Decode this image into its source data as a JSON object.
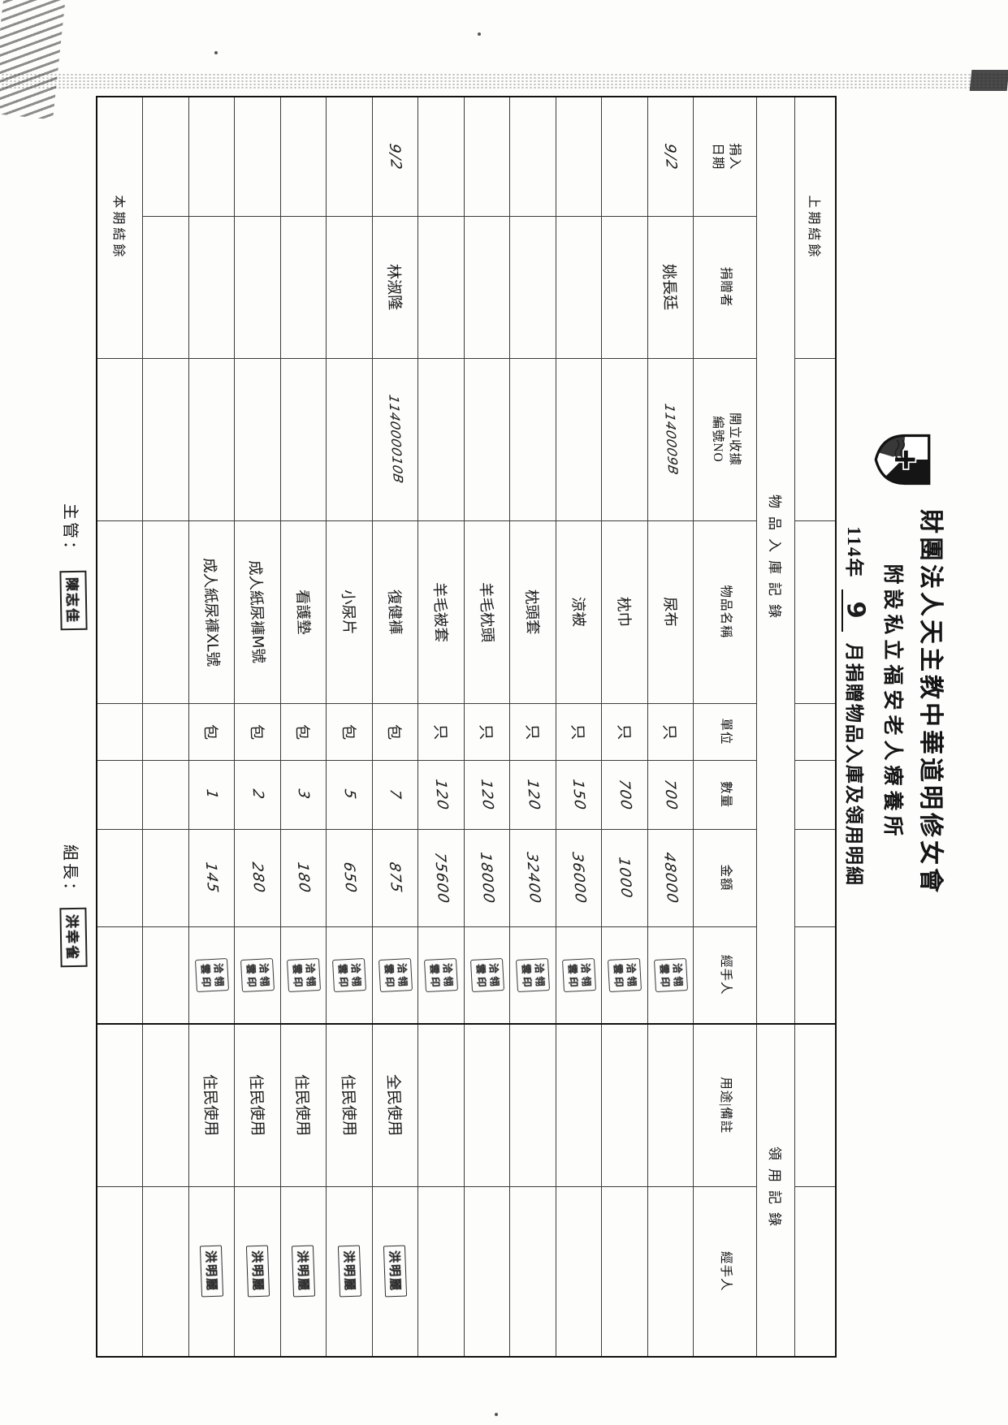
{
  "header": {
    "org_line1": "財團法人天主教中華道明修女會",
    "org_line2": "附設私立福安老人療養所",
    "doc_title": {
      "year": "114年",
      "month": "9",
      "rest": "月捐贈物品入庫及領用明細"
    },
    "logo_icon": "dominican-shield-cross-logo"
  },
  "table": {
    "balance_prev_label": "上期結餘",
    "balance_current_label": "本期結餘",
    "group_headers": {
      "storage": "物品入庫記錄",
      "usage": "領用記錄"
    },
    "columns": [
      {
        "key": "date",
        "label": "捐入\n日期"
      },
      {
        "key": "donor",
        "label": "捐贈者"
      },
      {
        "key": "receipt",
        "label": "開立收據\n編號NO"
      },
      {
        "key": "item",
        "label": "物品名稱"
      },
      {
        "key": "unit",
        "label": "單位"
      },
      {
        "key": "qty",
        "label": "數量"
      },
      {
        "key": "amount",
        "label": "金額"
      },
      {
        "key": "handler_in",
        "label": "經手人"
      },
      {
        "key": "usage_note",
        "label": "用途|備註"
      },
      {
        "key": "handler_out",
        "label": "經手人"
      }
    ],
    "stamps": {
      "storage_handler": "洽翎雲印",
      "usage_handler": "洪明麗",
      "supervisor": "陳志佳",
      "team_lead": "洪幸雀"
    },
    "rows": [
      {
        "date": "9/2",
        "donor": "姚長廷",
        "receipt": "1140009B",
        "item": "尿布",
        "unit": "只",
        "qty": "700",
        "amount": "48000",
        "storage_stamp": true,
        "usage": "",
        "usage_stamp": false
      },
      {
        "date": "",
        "donor": "",
        "receipt": "",
        "item": "枕巾",
        "unit": "只",
        "qty": "700",
        "amount": "1000",
        "storage_stamp": true,
        "usage": "",
        "usage_stamp": false
      },
      {
        "date": "",
        "donor": "",
        "receipt": "",
        "item": "涼被",
        "unit": "只",
        "qty": "150",
        "amount": "36000",
        "storage_stamp": true,
        "usage": "",
        "usage_stamp": false
      },
      {
        "date": "",
        "donor": "",
        "receipt": "",
        "item": "枕頭套",
        "unit": "只",
        "qty": "120",
        "amount": "32400",
        "storage_stamp": true,
        "usage": "",
        "usage_stamp": false
      },
      {
        "date": "",
        "donor": "",
        "receipt": "",
        "item": "羊毛枕頭",
        "unit": "只",
        "qty": "120",
        "amount": "18000",
        "storage_stamp": true,
        "usage": "",
        "usage_stamp": false
      },
      {
        "date": "",
        "donor": "",
        "receipt": "",
        "item": "羊毛被套",
        "unit": "只",
        "qty": "120",
        "amount": "75600",
        "storage_stamp": true,
        "usage": "",
        "usage_stamp": false
      },
      {
        "date": "9/2",
        "donor": "林淑隆",
        "receipt": "114000010B",
        "item": "復健褲",
        "unit": "包",
        "qty": "7",
        "amount": "875",
        "storage_stamp": true,
        "usage": "全民使用",
        "usage_stamp": true
      },
      {
        "date": "",
        "donor": "",
        "receipt": "",
        "item": "小尿片",
        "unit": "包",
        "qty": "5",
        "amount": "650",
        "storage_stamp": true,
        "usage": "住民使用",
        "usage_stamp": true
      },
      {
        "date": "",
        "donor": "",
        "receipt": "",
        "item": "看護墊",
        "unit": "包",
        "qty": "3",
        "amount": "180",
        "storage_stamp": true,
        "usage": "住民使用",
        "usage_stamp": true
      },
      {
        "date": "",
        "donor": "",
        "receipt": "",
        "item": "成人紙尿褲M號",
        "unit": "包",
        "qty": "2",
        "amount": "280",
        "storage_stamp": true,
        "usage": "住民使用",
        "usage_stamp": true
      },
      {
        "date": "",
        "donor": "",
        "receipt": "",
        "item": "成人紙尿褲XL號",
        "unit": "包",
        "qty": "1",
        "amount": "145",
        "storage_stamp": true,
        "usage": "住民使用",
        "usage_stamp": true
      },
      {
        "date": "",
        "donor": "",
        "receipt": "",
        "item": "",
        "unit": "",
        "qty": "",
        "amount": "",
        "storage_stamp": false,
        "usage": "",
        "usage_stamp": false
      }
    ]
  },
  "footer": {
    "supervisor_label": "主管：",
    "team_lead_label": "組長："
  }
}
